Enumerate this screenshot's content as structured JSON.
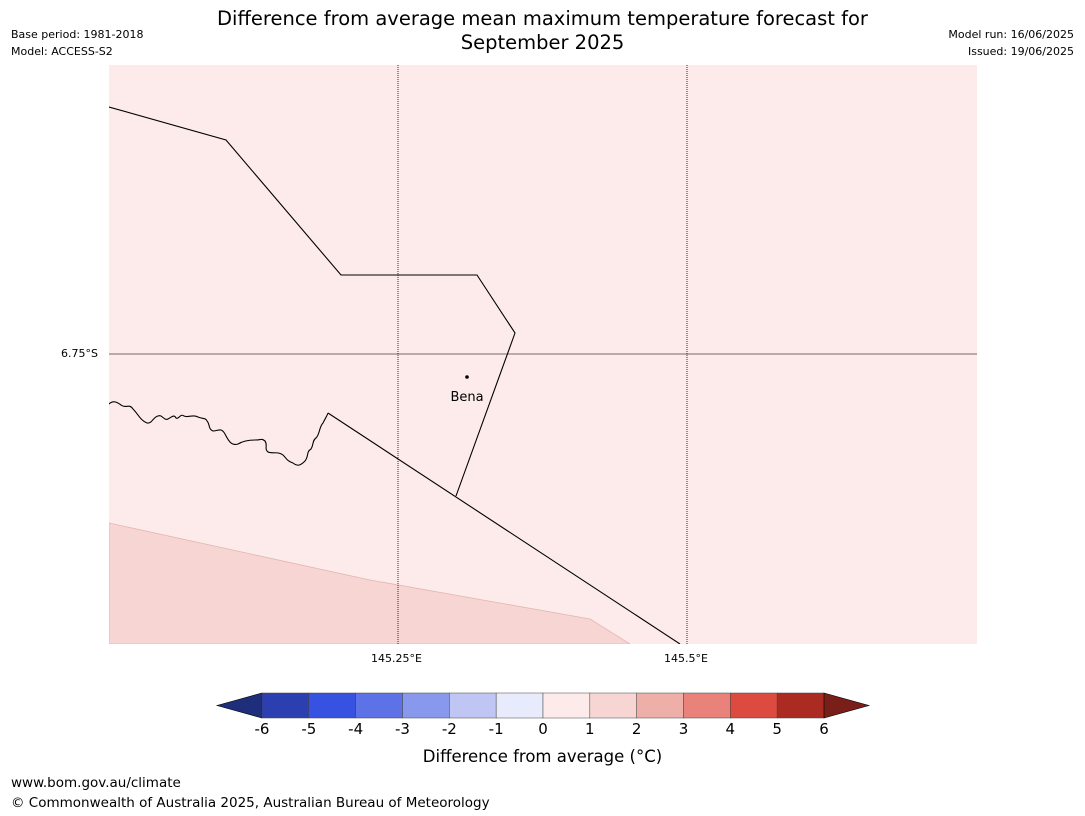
{
  "header": {
    "title_line1": "Difference from average mean maximum temperature forecast for",
    "title_line2": "September 2025",
    "base_period": "Base period: 1981-2018",
    "model": "Model: ACCESS-S2",
    "model_run": "Model run: 16/06/2025",
    "issued": "Issued: 19/06/2025"
  },
  "map": {
    "place_label": "Bena",
    "lat_label": "6.75°S",
    "lon_labels": [
      "145.25°E",
      "145.5°E"
    ],
    "fill_colors": {
      "band_0_to_1": "#fcebea",
      "band_1_to_2": "#f6d5d2"
    }
  },
  "colorbar": {
    "label": "Difference from average (°C)",
    "ticks": [
      "-6",
      "-5",
      "-4",
      "-3",
      "-2",
      "-1",
      "0",
      "1",
      "2",
      "3",
      "4",
      "5",
      "6"
    ],
    "under_color": "#1f2e7a",
    "over_color": "#7a1e1a",
    "colors": [
      "#2b3fb0",
      "#3752e0",
      "#5c72e6",
      "#8898ec",
      "#bfc6f4",
      "#e8ebfb",
      "#fcebea",
      "#f6d5d2",
      "#efafa9",
      "#e8827b",
      "#dd4a40",
      "#ab2a22"
    ]
  },
  "footer": {
    "url": "www.bom.gov.au/climate",
    "copyright": "© Commonwealth of Australia 2025, Australian Bureau of Meteorology"
  }
}
